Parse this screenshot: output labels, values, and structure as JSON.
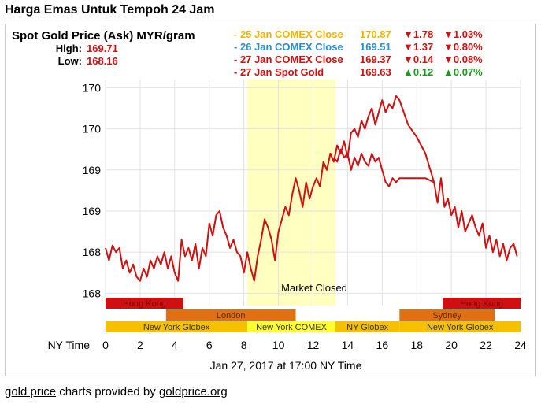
{
  "page": {
    "title": "Harga Emas Untuk Tempoh 24 Jam"
  },
  "header": {
    "chart_title": "Spot Gold Price (Ask) MYR/gram",
    "high_label": "High:",
    "high_value": "169.71",
    "low_label": "Low:",
    "low_value": "168.16",
    "quotes": [
      {
        "label": "- 25 Jan COMEX Close",
        "value": "170.87",
        "change": "▼1.78",
        "pct": "▼1.03%",
        "label_color": "#f0b400",
        "value_color": "#f0b400",
        "change_color": "#d01010"
      },
      {
        "label": "- 26 Jan COMEX Close",
        "value": "169.51",
        "change": "▼1.37",
        "pct": "▼0.80%",
        "label_color": "#2a8fd0",
        "value_color": "#2a8fd0",
        "change_color": "#d01010"
      },
      {
        "label": "- 27 Jan COMEX Close",
        "value": "169.37",
        "change": "▼0.14",
        "pct": "▼0.08%",
        "label_color": "#d01010",
        "value_color": "#d01010",
        "change_color": "#d01010"
      },
      {
        "label": "- 27 Jan Spot Gold",
        "value": "169.63",
        "change": "▲0.12",
        "pct": "▲0.07%",
        "label_color": "#d01010",
        "value_color": "#d01010",
        "change_color": "#1a9a1a"
      }
    ]
  },
  "market_closed_label": "Market Closed",
  "sessions": [
    {
      "name": "Hong Kong",
      "start": 0,
      "end": 4.5,
      "row": 0,
      "color": "#d01010",
      "text_color": "#7a0000"
    },
    {
      "name": "Hong Kong",
      "start": 19.5,
      "end": 24,
      "row": 0,
      "color": "#d01010",
      "text_color": "#7a0000"
    },
    {
      "name": "London",
      "start": 3.5,
      "end": 11,
      "row": 1,
      "color": "#e07010",
      "text_color": "#5a2a00"
    },
    {
      "name": "Sydney",
      "start": 17,
      "end": 22.5,
      "row": 1,
      "color": "#e07010",
      "text_color": "#5a2a00"
    },
    {
      "name": "New York Globex",
      "start": 0,
      "end": 8.2,
      "row": 2,
      "color": "#f5c000",
      "text_color": "#333333"
    },
    {
      "name": "New York COMEX",
      "start": 8.2,
      "end": 13.3,
      "row": 2,
      "color": "#ffff33",
      "text_color": "#333333"
    },
    {
      "name": "NY Globex",
      "start": 13.3,
      "end": 17,
      "row": 2,
      "color": "#f5c000",
      "text_color": "#333333"
    },
    {
      "name": "New York Globex",
      "start": 17,
      "end": 24,
      "row": 2,
      "color": "#f5c000",
      "text_color": "#333333"
    }
  ],
  "footer": {
    "link1": "gold price",
    "middle": " charts provided by ",
    "link2": "goldprice.org"
  },
  "chart_data": {
    "type": "line",
    "x_axis_label": "NY Time",
    "subtitle": "Jan 27, 2017 at 17:00 NY Time",
    "xlim": [
      0,
      24
    ],
    "x_ticks": [
      0,
      2,
      4,
      6,
      8,
      10,
      12,
      14,
      16,
      18,
      20,
      22,
      24
    ],
    "y_tick_values": [
      167.9,
      168.4,
      168.9,
      169.4,
      169.9,
      170.4
    ],
    "y_tick_labels": [
      "168",
      "168",
      "169",
      "169",
      "170",
      "170"
    ],
    "ylim": [
      167.75,
      170.5
    ],
    "market_closed": [
      8.2,
      13.3
    ],
    "line_color": "#d01010",
    "grid": true,
    "series": [
      {
        "x": [
          0,
          0.2,
          0.4,
          0.6,
          0.8,
          1.0,
          1.2,
          1.4,
          1.6,
          1.8,
          2.0,
          2.2,
          2.4,
          2.6,
          2.8,
          3.0,
          3.2,
          3.4,
          3.6,
          3.8,
          4.0,
          4.2,
          4.4,
          4.6,
          4.8,
          5.0,
          5.2,
          5.4,
          5.6,
          5.8,
          6.0,
          6.2,
          6.4,
          6.6,
          6.8,
          7.0,
          7.2,
          7.4,
          7.6,
          7.8,
          8.0,
          8.2,
          8.4,
          8.6,
          8.8,
          9.0,
          9.2,
          9.4,
          9.6,
          9.8,
          10.0,
          10.2,
          10.4,
          10.6,
          10.8,
          11.0,
          11.2,
          11.4,
          11.6,
          11.8,
          12.0,
          12.2,
          12.4,
          12.6,
          12.8,
          13.0,
          13.2,
          13.4,
          13.6,
          13.8,
          14.0,
          14.2,
          14.4,
          14.6,
          14.8,
          15.0,
          15.2,
          15.4,
          15.6,
          15.8,
          16.0,
          16.2,
          16.4,
          16.6,
          16.8,
          17.0,
          17.5,
          18.0,
          18.5,
          19.0,
          19.2,
          19.4,
          19.6,
          19.8,
          20.0,
          20.2,
          20.4,
          20.6,
          20.8,
          21.0,
          21.2,
          21.4,
          21.6,
          21.8,
          22.0,
          22.2,
          22.4,
          22.6,
          22.8,
          23.0,
          23.2,
          23.4,
          23.6,
          23.8
        ],
        "y": [
          168.45,
          168.3,
          168.48,
          168.4,
          168.45,
          168.2,
          168.3,
          168.15,
          168.25,
          168.1,
          168.05,
          168.2,
          168.1,
          168.3,
          168.2,
          168.35,
          168.25,
          168.4,
          168.2,
          168.35,
          168.15,
          168.05,
          168.55,
          168.35,
          168.45,
          168.3,
          168.5,
          168.2,
          168.45,
          168.35,
          168.75,
          168.6,
          168.85,
          168.9,
          168.7,
          168.6,
          168.45,
          168.55,
          168.4,
          168.35,
          168.15,
          168.4,
          168.2,
          168.05,
          168.35,
          168.55,
          168.8,
          168.7,
          168.55,
          168.3,
          168.65,
          168.8,
          168.95,
          168.85,
          169.1,
          169.3,
          169.15,
          168.95,
          169.25,
          169.05,
          169.2,
          169.3,
          169.2,
          169.5,
          169.4,
          169.6,
          169.5,
          169.7,
          169.6,
          169.75,
          169.55,
          169.85,
          169.9,
          169.8,
          170.0,
          169.9,
          170.05,
          170.15,
          169.95,
          170.1,
          170.25,
          170.1,
          170.2,
          170.15,
          170.3,
          170.25,
          169.95,
          169.8,
          169.6,
          169.25,
          169.0,
          169.3,
          168.95,
          169.05,
          168.85,
          168.95,
          168.7,
          168.9,
          168.65,
          168.75,
          168.85,
          168.7,
          168.6,
          168.75,
          168.45,
          168.6,
          168.4,
          168.55,
          168.35,
          168.5,
          168.3,
          168.45,
          168.5,
          168.35
        ]
      },
      {
        "x": [
          13.2,
          13.4,
          13.6,
          13.8,
          14.0,
          14.2,
          14.4,
          14.6,
          14.8,
          15.0,
          15.2,
          15.4,
          15.6,
          15.8,
          16.0,
          16.2,
          16.4,
          16.6,
          16.8,
          17.0,
          17.5,
          18.0,
          18.5,
          19.0
        ],
        "y": [
          169.55,
          169.5,
          169.65,
          169.55,
          169.6,
          169.4,
          169.55,
          169.45,
          169.6,
          169.5,
          169.45,
          169.6,
          169.5,
          169.55,
          169.4,
          169.25,
          169.2,
          169.3,
          169.25,
          169.3,
          169.3,
          169.3,
          169.3,
          169.25
        ]
      }
    ]
  }
}
